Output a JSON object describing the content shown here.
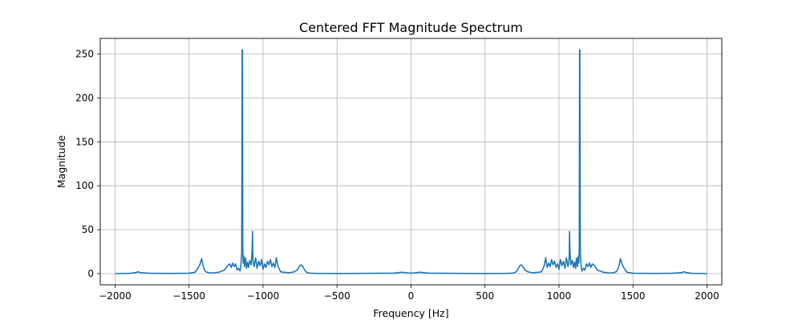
{
  "chart_data": {
    "type": "line",
    "title": "Centered FFT Magnitude Spectrum",
    "xlabel": "Frequency [Hz]",
    "ylabel": "Magnitude",
    "xlim": [
      -2100,
      2100
    ],
    "ylim": [
      -12.75,
      267.75
    ],
    "grid": true,
    "line_color": "#1f77b4",
    "x_ticks": [
      -2000,
      -1500,
      -1000,
      -500,
      0,
      500,
      1000,
      1500,
      2000
    ],
    "x_tick_labels": [
      "−2000",
      "−1500",
      "−1000",
      "−500",
      "0",
      "500",
      "1000",
      "1500",
      "2000"
    ],
    "y_ticks": [
      0,
      50,
      100,
      150,
      200,
      250
    ],
    "y_tick_labels": [
      "0",
      "50",
      "100",
      "150",
      "200",
      "250"
    ],
    "series": [
      {
        "x": [
          -2000,
          -1900,
          -1860,
          -1845,
          -1830,
          -1800,
          -1760,
          -1650,
          -1500,
          -1460,
          -1440,
          -1425,
          -1415,
          -1405,
          -1395,
          -1385,
          -1370,
          -1340,
          -1300,
          -1260,
          -1240,
          -1225,
          -1215,
          -1205,
          -1195,
          -1185,
          -1175,
          -1165,
          -1155,
          -1150,
          -1144,
          -1141,
          -1139,
          -1137,
          -1134,
          -1130,
          -1125,
          -1118,
          -1112,
          -1105,
          -1098,
          -1090,
          -1080,
          -1074,
          -1071,
          -1069,
          -1066,
          -1060,
          -1050,
          -1040,
          -1030,
          -1020,
          -1010,
          -1000,
          -990,
          -980,
          -970,
          -960,
          -950,
          -940,
          -930,
          -920,
          -910,
          -900,
          -890,
          -880,
          -860,
          -820,
          -790,
          -770,
          -755,
          -745,
          -735,
          -725,
          -715,
          -705,
          -695,
          -680,
          -650,
          -600,
          -500,
          -300,
          -120,
          -60,
          -20,
          0,
          20,
          60,
          120,
          300,
          500,
          600,
          650,
          680,
          695,
          705,
          715,
          725,
          735,
          745,
          755,
          770,
          790,
          820,
          860,
          880,
          890,
          900,
          910,
          920,
          930,
          940,
          950,
          960,
          970,
          980,
          990,
          1000,
          1010,
          1020,
          1030,
          1040,
          1050,
          1060,
          1066,
          1069,
          1071,
          1074,
          1080,
          1090,
          1098,
          1105,
          1112,
          1118,
          1125,
          1130,
          1134,
          1137,
          1139,
          1141,
          1144,
          1150,
          1155,
          1165,
          1175,
          1185,
          1195,
          1205,
          1215,
          1225,
          1240,
          1260,
          1300,
          1340,
          1370,
          1385,
          1395,
          1405,
          1415,
          1425,
          1440,
          1460,
          1500,
          1650,
          1760,
          1800,
          1830,
          1845,
          1860,
          1900,
          2000
        ],
        "y": [
          0,
          0.3,
          1.2,
          2,
          1.2,
          0.8,
          0.4,
          0.2,
          0.4,
          1.5,
          6,
          11,
          17,
          9,
          4,
          2,
          1,
          0.8,
          1.5,
          4,
          9,
          11,
          7,
          12,
          8,
          11,
          4,
          6,
          3,
          8,
          25,
          254,
          255,
          30,
          12,
          20,
          8,
          18,
          6,
          13,
          7,
          15,
          10,
          25,
          48,
          20,
          12,
          8,
          18,
          6,
          14,
          9,
          16,
          5,
          11,
          7,
          14,
          10,
          16,
          8,
          12,
          7,
          18,
          9,
          5,
          2,
          1.5,
          1,
          2,
          4,
          8,
          10,
          9,
          6,
          3,
          1.5,
          0.8,
          0.5,
          0.3,
          0.2,
          0.1,
          0.3,
          0.5,
          1.5,
          0.8,
          0.6,
          0.8,
          1.5,
          0.5,
          0.3,
          0.1,
          0.2,
          0.3,
          0.5,
          0.8,
          1.5,
          3,
          6,
          9,
          10,
          8,
          4,
          2,
          1,
          1.5,
          2,
          5,
          9,
          18,
          7,
          12,
          8,
          16,
          10,
          14,
          7,
          11,
          5,
          16,
          9,
          14,
          6,
          18,
          8,
          12,
          20,
          48,
          25,
          10,
          15,
          7,
          13,
          6,
          18,
          8,
          20,
          12,
          30,
          255,
          254,
          25,
          8,
          3,
          6,
          4,
          11,
          8,
          12,
          7,
          11,
          9,
          4,
          1.5,
          0.8,
          1,
          2,
          4,
          9,
          17,
          11,
          6,
          1.5,
          0.4,
          0.2,
          0.4,
          0.8,
          1.2,
          2,
          1.2,
          0.3,
          0
        ]
      }
    ]
  }
}
